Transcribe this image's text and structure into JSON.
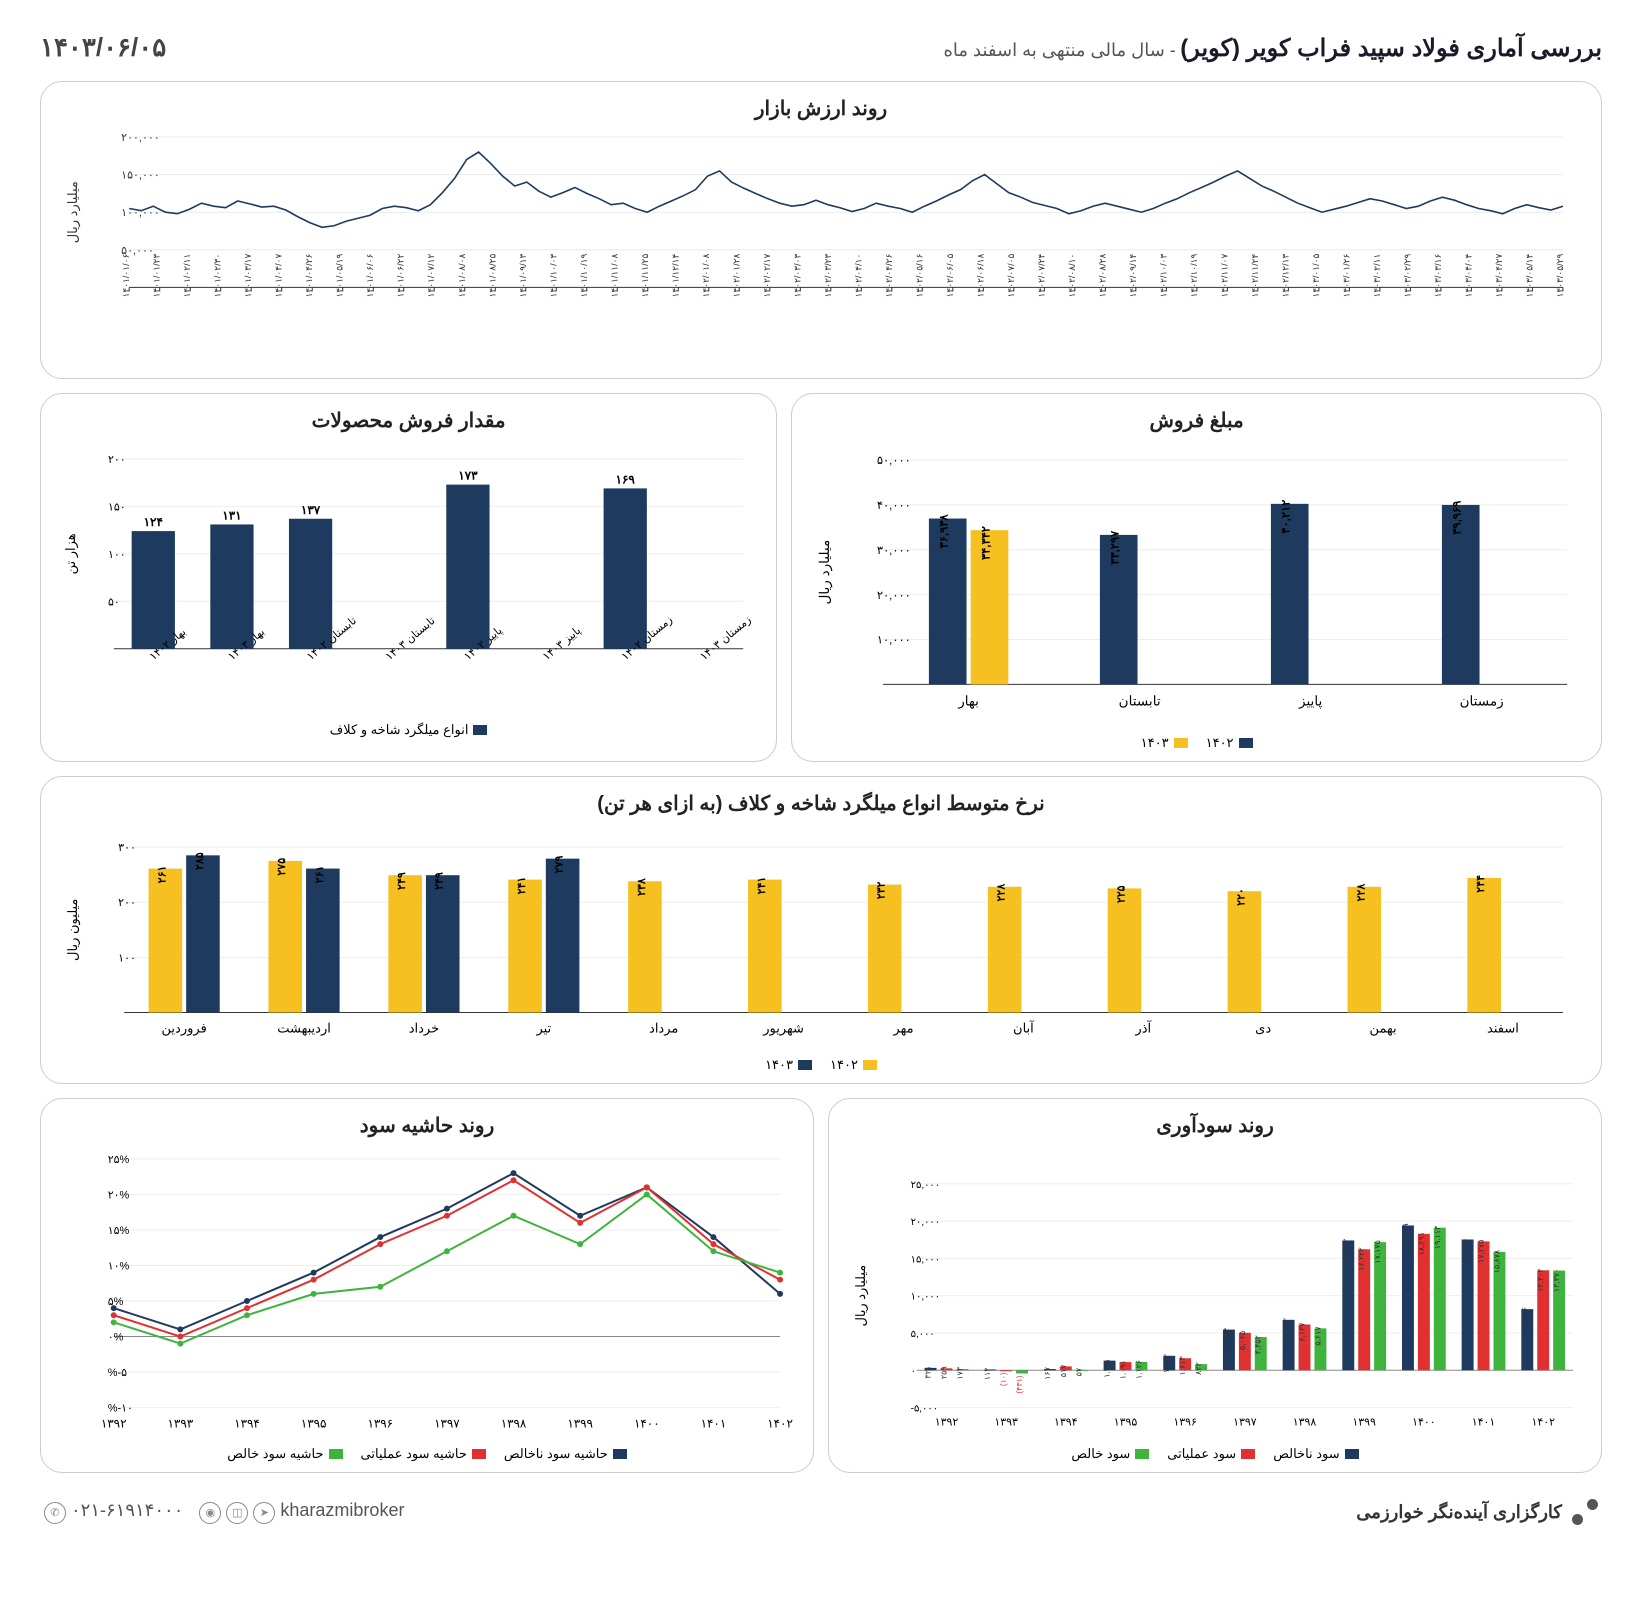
{
  "header": {
    "title": "بررسی آماری فولاد سپید فراب کویر (کویر)",
    "subtitle": " - سال مالی منتهی به اسفند ماه",
    "date": "۱۴۰۳/۰۶/۰۵"
  },
  "colors": {
    "navy": "#1e3a5f",
    "yellow": "#f5c020",
    "red": "#e03030",
    "green": "#3eb43e",
    "grid": "#d8d8d8",
    "axis": "#333",
    "border": "#cccccc"
  },
  "market_chart": {
    "title": "روند ارزش بازار",
    "ylabel": "میلیارد ریال",
    "ylim": [
      0,
      200000
    ],
    "ytick_step": 50000,
    "yticks": [
      "۵۰,۰۰۰",
      "۱۰۰,۰۰۰",
      "۱۵۰,۰۰۰",
      "۲۰۰,۰۰۰"
    ],
    "x_labels": [
      "۱۴۰۱/۰۱/۰۶",
      "۱۴۰۱/۰۱/۲۳",
      "۱۴۰۱/۰۲/۱۱",
      "۱۴۰۱/۰۲/۳۰",
      "۱۴۰۱/۰۳/۱۷",
      "۱۴۰۱/۰۴/۰۷",
      "۱۴۰۱/۰۴/۲۶",
      "۱۴۰۱/۰۵/۱۹",
      "۱۴۰۱/۰۶/۰۶",
      "۱۴۰۱/۰۶/۲۲",
      "۱۴۰۱/۰۷/۱۲",
      "۱۴۰۱/۰۸/۰۸",
      "۱۴۰۱/۰۸/۲۵",
      "۱۴۰۱/۰۹/۱۳",
      "۱۴۰۱/۱۰/۰۳",
      "۱۴۰۱/۱۰/۱۹",
      "۱۴۰۱/۱۱/۰۸",
      "۱۴۰۱/۱۱/۲۵",
      "۱۴۰۱/۱۲/۱۴",
      "۱۴۰۲/۰۱/۰۸",
      "۱۴۰۲/۰۱/۲۸",
      "۱۴۰۲/۰۲/۱۷",
      "۱۴۰۲/۰۳/۰۳",
      "۱۴۰۲/۰۳/۲۳",
      "۱۴۰۲/۰۴/۱۰",
      "۱۴۰۲/۰۴/۲۶",
      "۱۴۰۲/۰۵/۱۶",
      "۱۴۰۲/۰۶/۰۵",
      "۱۴۰۲/۰۶/۱۸",
      "۱۴۰۲/۰۷/۰۵",
      "۱۴۰۲/۰۷/۲۴",
      "۱۴۰۲/۰۸/۱۰",
      "۱۴۰۲/۰۸/۲۸",
      "۱۴۰۲/۰۹/۱۴",
      "۱۴۰۲/۱۰/۰۳",
      "۱۴۰۲/۱۰/۱۹",
      "۱۴۰۲/۱۱/۰۷",
      "۱۴۰۲/۱۱/۲۴",
      "۱۴۰۲/۱۲/۱۳",
      "۱۴۰۳/۰۱/۰۵",
      "۱۴۰۳/۰۱/۲۶",
      "۱۴۰۳/۰۲/۱۱",
      "۱۴۰۳/۰۲/۲۹",
      "۱۴۰۳/۰۳/۱۶",
      "۱۴۰۳/۰۴/۰۴",
      "۱۴۰۳/۰۴/۲۷",
      "۱۴۰۳/۰۵/۱۴",
      "۱۴۰۳/۰۵/۲۹"
    ],
    "values": [
      105000,
      102000,
      108000,
      100000,
      98000,
      104000,
      112000,
      108000,
      106000,
      115000,
      111000,
      107000,
      108000,
      103000,
      94000,
      86000,
      80000,
      82000,
      88000,
      92000,
      96000,
      105000,
      108000,
      106000,
      102000,
      110000,
      126000,
      145000,
      170000,
      180000,
      165000,
      148000,
      135000,
      140000,
      128000,
      120000,
      126000,
      133000,
      125000,
      118000,
      110000,
      112000,
      105000,
      100000,
      108000,
      115000,
      122000,
      130000,
      148000,
      155000,
      140000,
      132000,
      125000,
      118000,
      112000,
      108000,
      110000,
      116000,
      110000,
      106000,
      101000,
      105000,
      112000,
      108000,
      105000,
      100000,
      108000,
      115000,
      123000,
      130000,
      142000,
      150000,
      138000,
      126000,
      120000,
      113000,
      109000,
      105000,
      98000,
      102000,
      108000,
      112000,
      108000,
      104000,
      100000,
      105000,
      112000,
      118000,
      126000,
      133000,
      140000,
      148000,
      155000,
      145000,
      135000,
      128000,
      120000,
      112000,
      106000,
      100000,
      104000,
      108000,
      113000,
      118000,
      115000,
      110000,
      105000,
      108000,
      115000,
      120000,
      116000,
      110000,
      105000,
      102000,
      98000,
      105000,
      110000,
      106000,
      103000,
      108000
    ]
  },
  "sales_vol": {
    "title": "مقدار فروش محصولات",
    "ylabel": "هزار تن",
    "ylim": [
      0,
      200
    ],
    "ytick_step": 50,
    "yticks_fa": [
      "۵۰",
      "۱۰۰",
      "۱۵۰",
      "۲۰۰"
    ],
    "categories": [
      "بهار ۱۴۰۲",
      "بهار ۱۴۰۳",
      "تابستان ۱۴۰۲",
      "تابستان ۱۴۰۳",
      "پاییز ۱۴۰۲",
      "پاییز ۱۴۰۳",
      "زمستان ۱۴۰۲",
      "زمستان ۱۴۰۳"
    ],
    "values": [
      124,
      131,
      137,
      null,
      173,
      null,
      169,
      null
    ],
    "labels_fa": [
      "۱۲۴",
      "۱۳۱",
      "۱۳۷",
      "",
      "۱۷۳",
      "",
      "۱۶۹",
      ""
    ],
    "legend": "انواع میلگرد شاخه و کلاف"
  },
  "sales_amt": {
    "title": "مبلغ فروش",
    "ylabel": "میلیارد ریال",
    "ylim": [
      0,
      50000
    ],
    "ytick_step": 10000,
    "yticks_fa": [
      "۱۰,۰۰۰",
      "۲۰,۰۰۰",
      "۳۰,۰۰۰",
      "۴۰,۰۰۰",
      "۵۰,۰۰۰"
    ],
    "categories": [
      "بهار",
      "تابستان",
      "پاییز",
      "زمستان"
    ],
    "values_1402": [
      36938,
      33297,
      40212,
      39969
    ],
    "values_1403": [
      34342,
      null,
      null,
      null
    ],
    "labels_1402_fa": [
      "۳۶,۹۳۸",
      "۳۳,۲۹۷",
      "۴۰,۲۱۲",
      "۳۹,۹۶۹"
    ],
    "labels_1403_fa": [
      "۳۴,۳۴۲",
      "",
      "",
      ""
    ],
    "legend": {
      "a": "۱۴۰۲",
      "b": "۱۴۰۳"
    }
  },
  "avg_price": {
    "title": "نرخ متوسط انواع میلگرد شاخه و کلاف (به ازای هر تن)",
    "ylabel": "میلیون ریال",
    "ylim": [
      0,
      300
    ],
    "ytick_step": 100,
    "yticks_fa": [
      "۱۰۰",
      "۲۰۰",
      "۳۰۰"
    ],
    "months": [
      "فروردین",
      "اردیبهشت",
      "خرداد",
      "تیر",
      "مرداد",
      "شهریور",
      "مهر",
      "آبان",
      "آذر",
      "دی",
      "بهمن",
      "اسفند"
    ],
    "v1402": [
      261,
      275,
      249,
      241,
      238,
      241,
      232,
      228,
      225,
      220,
      228,
      244
    ],
    "v1403": [
      285,
      261,
      249,
      279,
      null,
      null,
      null,
      null,
      null,
      null,
      null,
      null
    ],
    "labels_1402_fa": [
      "۲۶۱",
      "۲۷۵",
      "۲۴۹",
      "۲۴۱",
      "۲۳۸",
      "۲۴۱",
      "۲۳۲",
      "۲۲۸",
      "۲۲۵",
      "۲۲۰",
      "۲۲۸",
      "۲۴۴"
    ],
    "labels_1403_fa": [
      "۲۸۵",
      "۲۶۱",
      "۲۴۹",
      "۲۷۹",
      "",
      "",
      "",
      "",
      "",
      "",
      "",
      ""
    ],
    "legend": {
      "a": "۱۴۰۲",
      "b": "۱۴۰۳"
    }
  },
  "margin": {
    "title": "روند حاشیه سود",
    "ylim": [
      -10,
      25
    ],
    "yticks": [
      -10,
      -5,
      0,
      5,
      10,
      15,
      20,
      25
    ],
    "yticks_fa": [
      "۱۰-%",
      "۵-%",
      "۰%",
      "۵%",
      "۱۰%",
      "۱۵%",
      "۲۰%",
      "۲۵%"
    ],
    "years": [
      "۱۳۹۲",
      "۱۳۹۳",
      "۱۳۹۴",
      "۱۳۹۵",
      "۱۳۹۶",
      "۱۳۹۷",
      "۱۳۹۸",
      "۱۳۹۹",
      "۱۴۰۰",
      "۱۴۰۱",
      "۱۴۰۲"
    ],
    "gross": [
      4,
      1,
      5,
      9,
      14,
      18,
      23,
      17,
      21,
      14,
      6
    ],
    "oper": [
      3,
      0,
      4,
      8,
      13,
      17,
      22,
      16,
      21,
      13,
      8
    ],
    "net": [
      2,
      -1,
      3,
      6,
      7,
      12,
      17,
      13,
      20,
      12,
      9
    ],
    "legend": {
      "gross": "حاشیه سود ناخالص",
      "oper": "حاشیه سود عملیاتی",
      "net": "حاشیه سود خالص"
    }
  },
  "profit": {
    "title": "روند سودآوری",
    "ylabel": "میلیارد ریال",
    "ylim": [
      -5000,
      25000
    ],
    "yticks": [
      -5000,
      0,
      5000,
      10000,
      15000,
      20000,
      25000
    ],
    "yticks_fa": [
      "۵,۰۰۰-",
      "۰",
      "۵,۰۰۰",
      "۱۰,۰۰۰",
      "۱۵,۰۰۰",
      "۲۰,۰۰۰",
      "۲۵,۰۰۰"
    ],
    "years": [
      "۱۳۹۲",
      "۱۳۹۳",
      "۱۳۹۴",
      "۱۳۹۵",
      "۱۳۹۶",
      "۱۳۹۷",
      "۱۳۹۸",
      "۱۳۹۹",
      "۱۴۰۰",
      "۱۴۰۱",
      "۱۴۰۲"
    ],
    "gross": [
      321,
      112,
      167,
      1291,
      1942,
      5454,
      6762,
      17402,
      19409,
      17530,
      8196
    ],
    "oper": [
      259,
      -10,
      517,
      1091,
      1613,
      5025,
      6137,
      16222,
      18291,
      17275,
      13402
    ],
    "net": [
      173,
      -431,
      57,
      1126,
      822,
      4452,
      5617,
      17175,
      19113,
      15878,
      13370
    ],
    "labels_gross_fa": [
      "۳۲۱",
      "۱۱۲",
      "۱۶۷",
      "۱,۲۹۱",
      "۱,۹۴۲",
      "۵,۴۵۴",
      "۶,۷۶۲",
      "۱۷,۴۰۲",
      "۱۹,۴۰۹",
      "۱۷,۵۳۰",
      "۸,۱۹۶"
    ],
    "labels_oper_fa": [
      "۲۵۹",
      "(۱۰)",
      "۵۱۷",
      "۱,۰۹۱",
      "۱,۶۱۳",
      "۵,۰۲۵",
      "۶,۱۳۷",
      "۱۶,۲۲۲",
      "۱۸,۲۹۱",
      "۱۷,۲۷۵",
      "۱۳,۴۰۲"
    ],
    "labels_net_fa": [
      "۱۷۳",
      "(۴۳۱)",
      "۵۷",
      "۱,۱۲۶",
      "۸۲۲",
      "۴,۴۵۲",
      "۵,۶۱۷",
      "۱۷,۱۷۵",
      "۱۹,۱۱۳",
      "۱۵,۸۷۸",
      "۱۳,۳۷۰"
    ],
    "legend": {
      "gross": "سود ناخالص",
      "oper": "سود عملیاتی",
      "net": "سود خالص"
    }
  },
  "footer": {
    "brand": "کارگزاری آینده‌نگر خوارزمی",
    "phone": "۰۲۱-۶۱۹۱۴۰۰۰",
    "handle": "kharazmibroker"
  }
}
